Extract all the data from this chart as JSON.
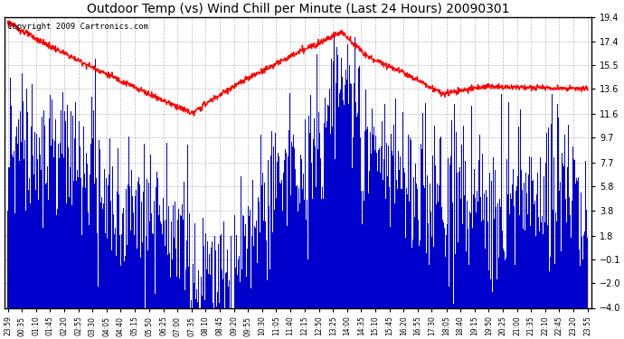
{
  "title": "Outdoor Temp (vs) Wind Chill per Minute (Last 24 Hours) 20090301",
  "copyright_text": "Copyright 2009 Cartronics.com",
  "yticks": [
    19.4,
    17.4,
    15.5,
    13.6,
    11.6,
    9.7,
    7.7,
    5.8,
    3.8,
    1.8,
    -0.1,
    -2.0,
    -4.0
  ],
  "xtick_labels": [
    "23:59",
    "00:35",
    "01:10",
    "01:45",
    "02:20",
    "02:55",
    "03:30",
    "04:05",
    "04:40",
    "05:15",
    "05:50",
    "06:25",
    "07:00",
    "07:35",
    "08:10",
    "08:45",
    "09:20",
    "09:55",
    "10:30",
    "11:05",
    "11:40",
    "12:15",
    "12:50",
    "13:25",
    "14:00",
    "14:35",
    "15:10",
    "15:45",
    "16:20",
    "16:55",
    "17:30",
    "18:05",
    "18:40",
    "19:15",
    "19:50",
    "20:25",
    "21:00",
    "21:35",
    "22:10",
    "22:45",
    "23:20",
    "23:55"
  ],
  "ymin": -4.0,
  "ymax": 19.4,
  "background_color": "#ffffff",
  "plot_bg_color": "#ffffff",
  "grid_color": "#bbbbbb",
  "bar_color": "#0000cc",
  "line_color": "#ff0000",
  "title_fontsize": 10,
  "copyright_fontsize": 6.5
}
